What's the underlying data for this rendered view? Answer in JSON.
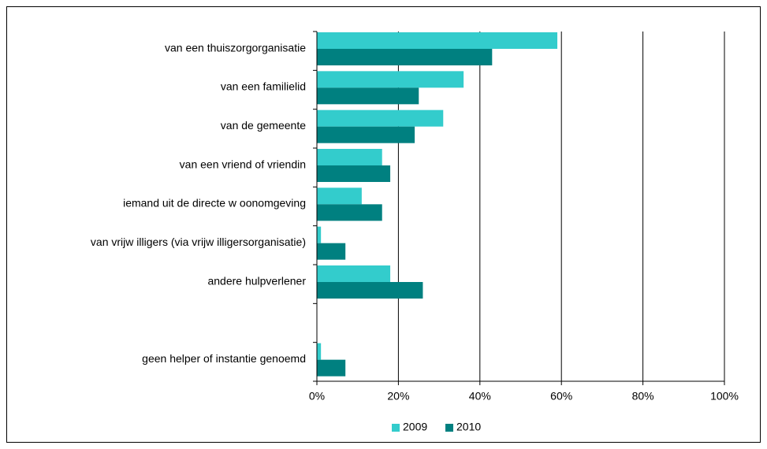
{
  "chart_data": {
    "type": "bar",
    "orientation": "horizontal",
    "categories": [
      "van een thuiszorgorganisatie",
      "van een familielid",
      "van de gemeente",
      "van een vriend of vriendin",
      "iemand uit de directe w oonomgeving",
      "van vrijw illigers (via vrijw illigersorganisatie)",
      "andere hulpverlener",
      null,
      "geen helper of instantie genoemd"
    ],
    "series": [
      {
        "name": "2009",
        "color": "#33cccc",
        "values": [
          59,
          36,
          31,
          16,
          11,
          1,
          18,
          null,
          1
        ]
      },
      {
        "name": "2010",
        "color": "#008080",
        "values": [
          43,
          25,
          24,
          18,
          16,
          7,
          26,
          null,
          7
        ]
      }
    ],
    "xlim": [
      0,
      100
    ],
    "xticks": [
      {
        "value": 0,
        "label": "0%"
      },
      {
        "value": 20,
        "label": "20%"
      },
      {
        "value": 40,
        "label": "40%"
      },
      {
        "value": 60,
        "label": "60%"
      },
      {
        "value": 80,
        "label": "80%"
      },
      {
        "value": 100,
        "label": "100%"
      }
    ],
    "grid": true,
    "legend": "bottom"
  }
}
